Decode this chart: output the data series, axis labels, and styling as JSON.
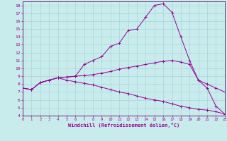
{
  "xlabel": "Windchill (Refroidissement éolien,°C)",
  "xlim": [
    0,
    23
  ],
  "ylim": [
    4,
    18.5
  ],
  "xtick_vals": [
    0,
    1,
    2,
    3,
    4,
    5,
    6,
    7,
    8,
    9,
    10,
    11,
    12,
    13,
    14,
    15,
    16,
    17,
    18,
    19,
    20,
    21,
    22,
    23
  ],
  "ytick_vals": [
    4,
    5,
    6,
    7,
    8,
    9,
    10,
    11,
    12,
    13,
    14,
    15,
    16,
    17,
    18
  ],
  "background_color": "#c8ecec",
  "grid_color": "#a8d4d8",
  "line_color": "#990099",
  "spine_color": "#660066",
  "line1_x": [
    0,
    1,
    2,
    3,
    4,
    5,
    6,
    7,
    8,
    9,
    10,
    11,
    12,
    13,
    14,
    15,
    16,
    17,
    18,
    19,
    20,
    21,
    22,
    23
  ],
  "line1_y": [
    7.5,
    7.3,
    8.2,
    8.5,
    8.8,
    8.9,
    9.0,
    10.5,
    11.0,
    11.5,
    12.8,
    13.2,
    14.8,
    15.0,
    16.5,
    18.0,
    18.2,
    17.1,
    14.0,
    11.0,
    8.5,
    7.5,
    5.2,
    4.2
  ],
  "line2_x": [
    0,
    1,
    2,
    3,
    4,
    5,
    6,
    7,
    8,
    9,
    10,
    11,
    12,
    13,
    14,
    15,
    16,
    17,
    18,
    19,
    20,
    21,
    22,
    23
  ],
  "line2_y": [
    7.5,
    7.3,
    8.2,
    8.5,
    8.8,
    8.9,
    9.0,
    9.1,
    9.2,
    9.4,
    9.6,
    9.9,
    10.1,
    10.3,
    10.5,
    10.7,
    10.9,
    11.0,
    10.8,
    10.5,
    8.5,
    8.0,
    7.5,
    7.0
  ],
  "line3_x": [
    0,
    1,
    2,
    3,
    4,
    5,
    6,
    7,
    8,
    9,
    10,
    11,
    12,
    13,
    14,
    15,
    16,
    17,
    18,
    19,
    20,
    21,
    22,
    23
  ],
  "line3_y": [
    7.5,
    7.3,
    8.2,
    8.5,
    8.8,
    8.5,
    8.3,
    8.1,
    7.9,
    7.6,
    7.3,
    7.0,
    6.8,
    6.5,
    6.2,
    6.0,
    5.8,
    5.5,
    5.2,
    5.0,
    4.8,
    4.7,
    4.5,
    4.2
  ]
}
